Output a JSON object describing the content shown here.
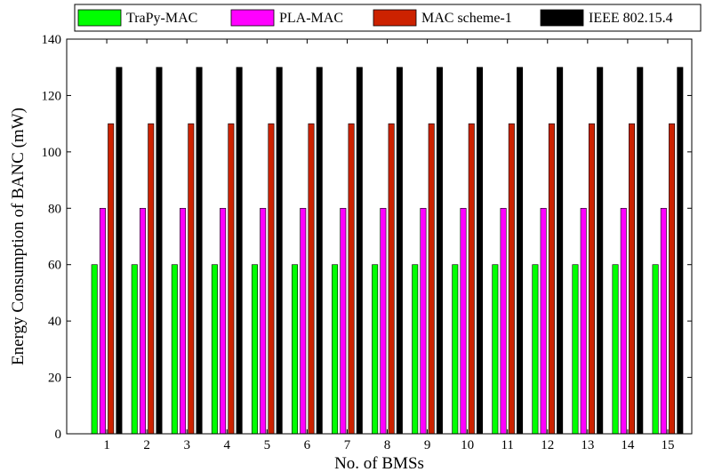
{
  "chart_data": {
    "type": "bar",
    "title": "",
    "xlabel": "No. of BMSs",
    "ylabel": "Energy Consumption of BANC (mW)",
    "ylim": [
      0,
      140
    ],
    "yticks": [
      0,
      20,
      40,
      60,
      80,
      100,
      120,
      140
    ],
    "xlim": [
      0,
      15.6
    ],
    "categories": [
      "1",
      "2",
      "3",
      "4",
      "5",
      "6",
      "7",
      "8",
      "9",
      "10",
      "11",
      "12",
      "13",
      "14",
      "15"
    ],
    "grid": false,
    "legend_position": "top",
    "series": [
      {
        "name": "TraPy-MAC",
        "color": "#00ff00",
        "values": [
          60,
          60,
          60,
          60,
          60,
          60,
          60,
          60,
          60,
          60,
          60,
          60,
          60,
          60,
          60
        ]
      },
      {
        "name": "PLA-MAC",
        "color": "#ff00ff",
        "values": [
          80,
          80,
          80,
          80,
          80,
          80,
          80,
          80,
          80,
          80,
          80,
          80,
          80,
          80,
          80
        ]
      },
      {
        "name": "MAC scheme-1",
        "color": "#cc2200",
        "values": [
          110,
          110,
          110,
          110,
          110,
          110,
          110,
          110,
          110,
          110,
          110,
          110,
          110,
          110,
          110
        ]
      },
      {
        "name": "IEEE 802.15.4",
        "color": "#000000",
        "values": [
          130,
          130,
          130,
          130,
          130,
          130,
          130,
          130,
          130,
          130,
          130,
          130,
          130,
          130,
          130
        ]
      }
    ]
  }
}
